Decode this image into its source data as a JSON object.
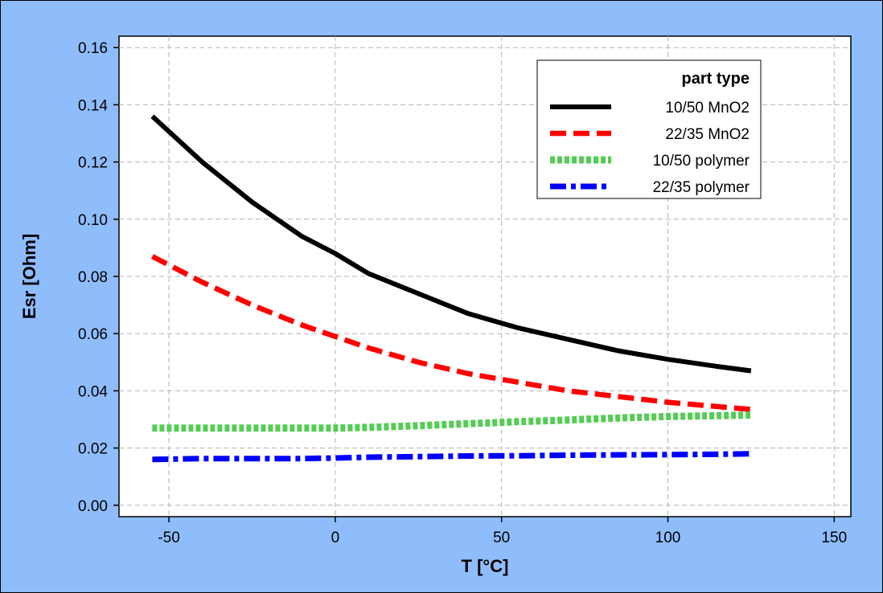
{
  "chart_data": {
    "type": "line",
    "xlabel": "T [°C]",
    "ylabel": "Esr [Ohm]",
    "xlim": [
      -65,
      155
    ],
    "ylim": [
      -0.004,
      0.164
    ],
    "x_ticks": [
      -50,
      0,
      50,
      100,
      150
    ],
    "y_ticks": [
      0.0,
      0.02,
      0.04,
      0.06,
      0.08,
      0.1,
      0.12,
      0.14,
      0.16
    ],
    "x_tick_labels": [
      "-50",
      "0",
      "50",
      "100",
      "150"
    ],
    "y_tick_labels": [
      "0.00",
      "0.02",
      "0.04",
      "0.06",
      "0.08",
      "0.10",
      "0.12",
      "0.14",
      "0.16"
    ],
    "grid": true,
    "legend_title": "part type",
    "legend_placement": "top-right",
    "x": [
      -55,
      -40,
      -25,
      -10,
      0,
      10,
      25,
      40,
      55,
      70,
      85,
      100,
      115,
      125
    ],
    "series": [
      {
        "name": "10/50 MnO2",
        "color": "#000000",
        "style": "solid",
        "values": [
          0.136,
          0.12,
          0.106,
          0.094,
          0.088,
          0.081,
          0.074,
          0.067,
          0.062,
          0.058,
          0.054,
          0.051,
          0.0485,
          0.047
        ]
      },
      {
        "name": "22/35 MnO2",
        "color": "#ff0000",
        "style": "dashed",
        "values": [
          0.087,
          0.078,
          0.07,
          0.063,
          0.059,
          0.055,
          0.05,
          0.046,
          0.043,
          0.04,
          0.038,
          0.036,
          0.0345,
          0.0335
        ]
      },
      {
        "name": "10/50 polymer",
        "color": "#55cc55",
        "style": "dotted",
        "values": [
          0.027,
          0.027,
          0.027,
          0.027,
          0.027,
          0.0272,
          0.0278,
          0.0285,
          0.0292,
          0.0298,
          0.0305,
          0.031,
          0.0313,
          0.0315
        ]
      },
      {
        "name": "22/35 polymer",
        "color": "#0000ff",
        "style": "dashdot",
        "values": [
          0.016,
          0.0163,
          0.0163,
          0.0163,
          0.0165,
          0.0168,
          0.017,
          0.0172,
          0.0173,
          0.0175,
          0.0176,
          0.0177,
          0.0178,
          0.018
        ]
      }
    ]
  }
}
